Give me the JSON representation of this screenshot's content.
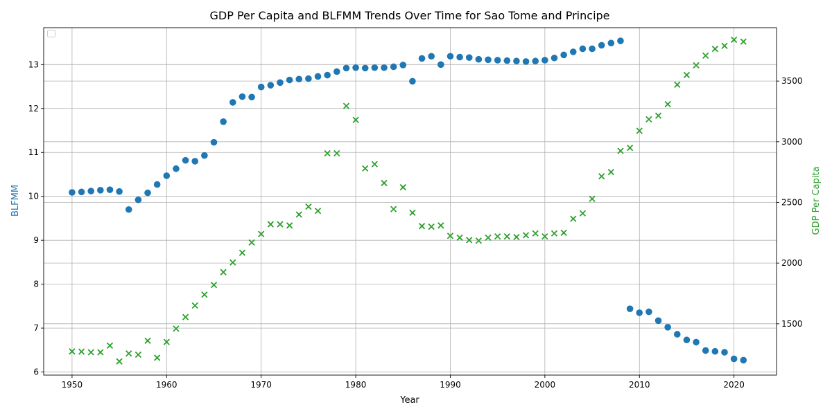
{
  "chart_data": {
    "type": "scatter",
    "title": "GDP Per Capita and BLFMM Trends Over Time for Sao Tome and Principe",
    "xlabel": "Year",
    "ylabel_left": "BLFMM",
    "ylabel_right": "GDP Per Capita",
    "xlim": [
      1947,
      2024.5
    ],
    "ylim_left": [
      5.93,
      13.84
    ],
    "ylim_right": [
      1077,
      3940
    ],
    "x_ticks": [
      1950,
      1960,
      1970,
      1980,
      1990,
      2000,
      2010,
      2020
    ],
    "y_ticks_left": [
      6,
      7,
      8,
      9,
      10,
      11,
      12,
      13
    ],
    "y_ticks_right": [
      1500,
      2000,
      2500,
      3000,
      3500
    ],
    "grid": true,
    "legend": {
      "position": "upper-left",
      "entries": []
    },
    "colors": {
      "blfmm": "#1f77b4",
      "gdp": "#2ca02c",
      "grid": "#b0b0b0",
      "axis": "#000000"
    },
    "x": [
      1950,
      1951,
      1952,
      1953,
      1954,
      1955,
      1956,
      1957,
      1958,
      1959,
      1960,
      1961,
      1962,
      1963,
      1964,
      1965,
      1966,
      1967,
      1968,
      1969,
      1970,
      1971,
      1972,
      1973,
      1974,
      1975,
      1976,
      1977,
      1978,
      1979,
      1980,
      1981,
      1982,
      1983,
      1984,
      1985,
      1986,
      1987,
      1988,
      1989,
      1990,
      1991,
      1992,
      1993,
      1994,
      1995,
      1996,
      1997,
      1998,
      1999,
      2000,
      2001,
      2002,
      2003,
      2004,
      2005,
      2006,
      2007,
      2008,
      2009,
      2010,
      2011,
      2012,
      2013,
      2014,
      2015,
      2016,
      2017,
      2018,
      2019,
      2020,
      2021
    ],
    "series": [
      {
        "name": "BLFMM",
        "axis": "left",
        "marker": "circle",
        "values": [
          10.09,
          10.1,
          10.12,
          10.14,
          10.15,
          10.11,
          9.7,
          9.92,
          10.08,
          10.27,
          10.47,
          10.63,
          10.82,
          10.8,
          10.93,
          11.23,
          11.7,
          12.14,
          12.27,
          12.26,
          12.49,
          12.53,
          12.59,
          12.65,
          12.67,
          12.68,
          12.73,
          12.76,
          12.84,
          12.92,
          12.93,
          12.92,
          12.93,
          12.93,
          12.95,
          12.99,
          12.62,
          13.14,
          13.19,
          13.0,
          13.19,
          13.17,
          13.16,
          13.12,
          13.11,
          13.1,
          13.09,
          13.08,
          13.07,
          13.08,
          13.1,
          13.15,
          13.22,
          13.29,
          13.36,
          13.36,
          13.44,
          13.49,
          13.54,
          7.44,
          7.35,
          7.37,
          7.17,
          7.02,
          6.86,
          6.73,
          6.68,
          6.49,
          6.47,
          6.45,
          6.3,
          6.27
        ]
      },
      {
        "name": "GDP Per Capita",
        "axis": "right",
        "marker": "x",
        "values": [
          1272,
          1270,
          1265,
          1265,
          1320,
          1190,
          1255,
          1245,
          1360,
          1220,
          1350,
          1460,
          1555,
          1650,
          1740,
          1820,
          1925,
          2005,
          2085,
          2170,
          2240,
          2320,
          2320,
          2310,
          2400,
          2465,
          2430,
          2905,
          2905,
          3295,
          3180,
          2780,
          2815,
          2660,
          2445,
          2625,
          2415,
          2305,
          2300,
          2310,
          2225,
          2210,
          2190,
          2185,
          2210,
          2220,
          2220,
          2215,
          2230,
          2245,
          2220,
          2245,
          2250,
          2365,
          2410,
          2530,
          2715,
          2750,
          2925,
          2950,
          3090,
          3185,
          3215,
          3310,
          3470,
          3550,
          3630,
          3710,
          3765,
          3790,
          3840,
          3825
        ]
      }
    ]
  }
}
